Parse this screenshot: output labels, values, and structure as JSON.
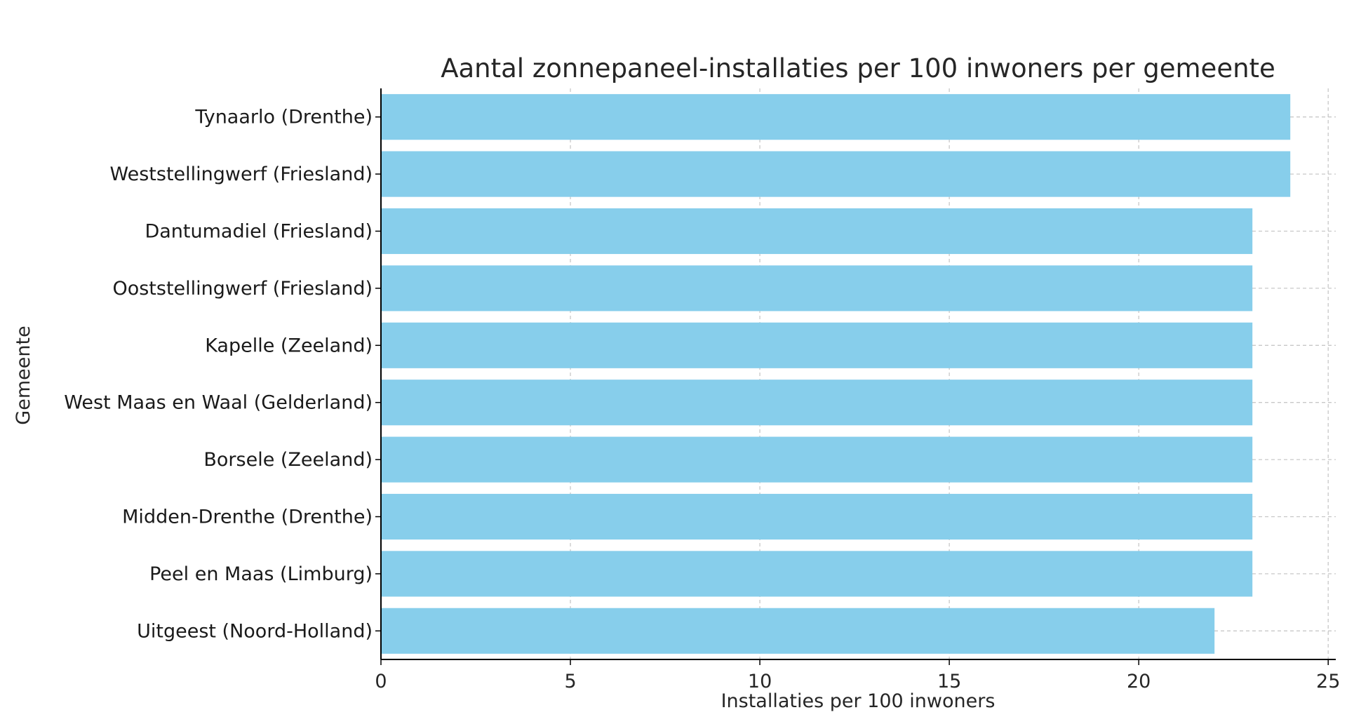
{
  "chart_data": {
    "type": "bar",
    "orientation": "horizontal",
    "title": "Aantal zonnepaneel-installaties per 100 inwoners per gemeente",
    "xlabel": "Installaties per 100 inwoners",
    "ylabel": "Gemeente",
    "xlim": [
      0,
      25.2
    ],
    "xticks": [
      0,
      5,
      10,
      15,
      20,
      25
    ],
    "grid": true,
    "bar_color": "#87CEEB",
    "categories": [
      "Tynaarlo (Drenthe)",
      "Weststellingwerf (Friesland)",
      "Dantumadiel (Friesland)",
      "Ooststellingwerf (Friesland)",
      "Kapelle (Zeeland)",
      "West Maas en Waal (Gelderland)",
      "Borsele (Zeeland)",
      "Midden-Drenthe (Drenthe)",
      "Peel en Maas (Limburg)",
      "Uitgeest (Noord-Holland)"
    ],
    "values": [
      24,
      24,
      23,
      23,
      23,
      23,
      23,
      23,
      23,
      22
    ]
  }
}
